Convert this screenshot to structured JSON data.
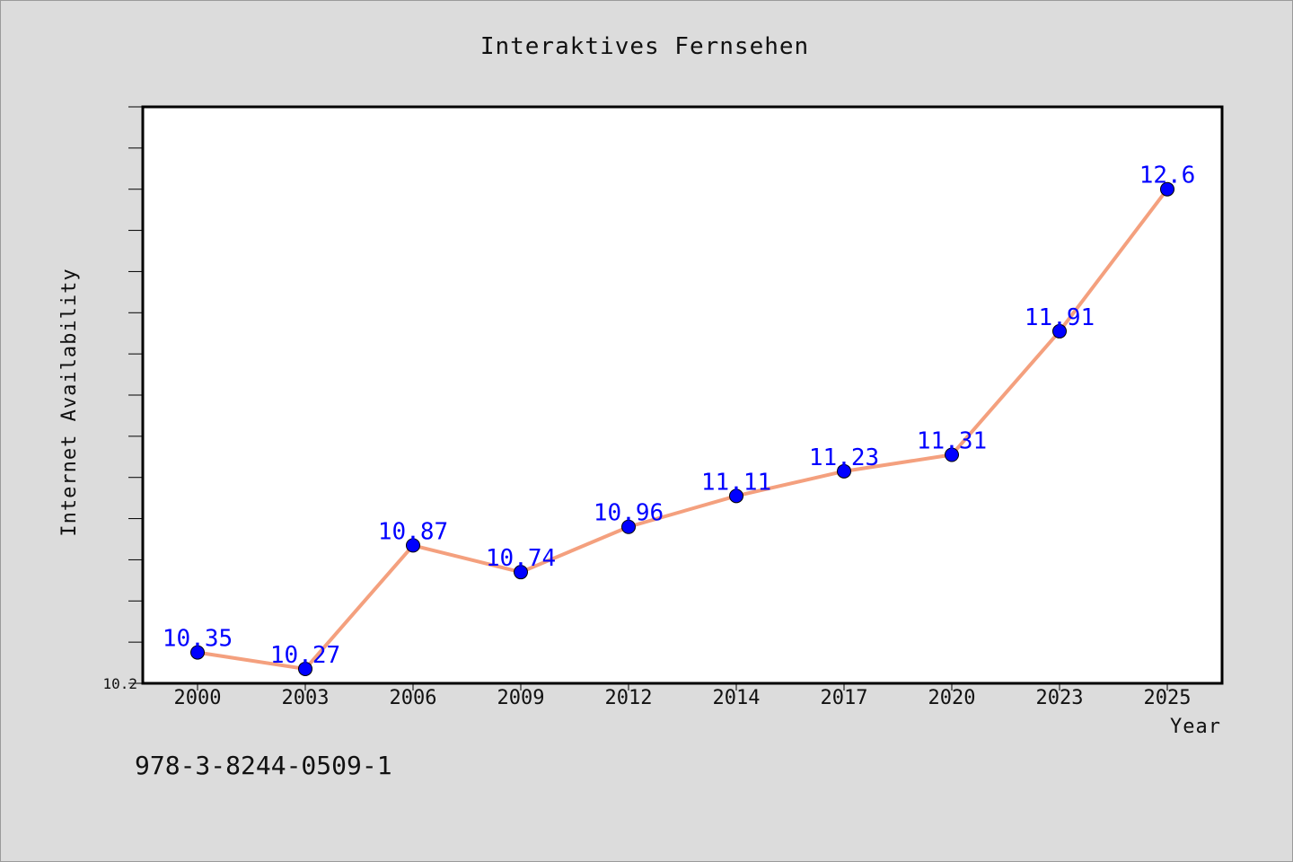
{
  "chart_data": {
    "type": "line",
    "title": "Interaktives Fernsehen",
    "xlabel": "Year",
    "ylabel": "Internet Availability",
    "categories": [
      "2000",
      "2003",
      "2006",
      "2009",
      "2012",
      "2014",
      "2017",
      "2020",
      "2023",
      "2025"
    ],
    "series": [
      {
        "values": [
          10.35,
          10.27,
          10.87,
          10.74,
          10.96,
          11.11,
          11.23,
          11.31,
          11.91,
          12.6
        ],
        "data_labels": [
          "10.35",
          "10.27",
          "10.87",
          "10.74",
          "10.96",
          "11.11",
          "11.23",
          "11.31",
          "11.91",
          "12.6"
        ],
        "line_color": "#f4a07e",
        "marker_color": "#0000ff"
      }
    ],
    "ylim": [
      10.2,
      13.0
    ],
    "ytick_labels": [
      "10.2"
    ],
    "grid": false,
    "plot_background": "#ffffff"
  },
  "footer": {
    "isbn": "978-3-8244-0509-1"
  }
}
